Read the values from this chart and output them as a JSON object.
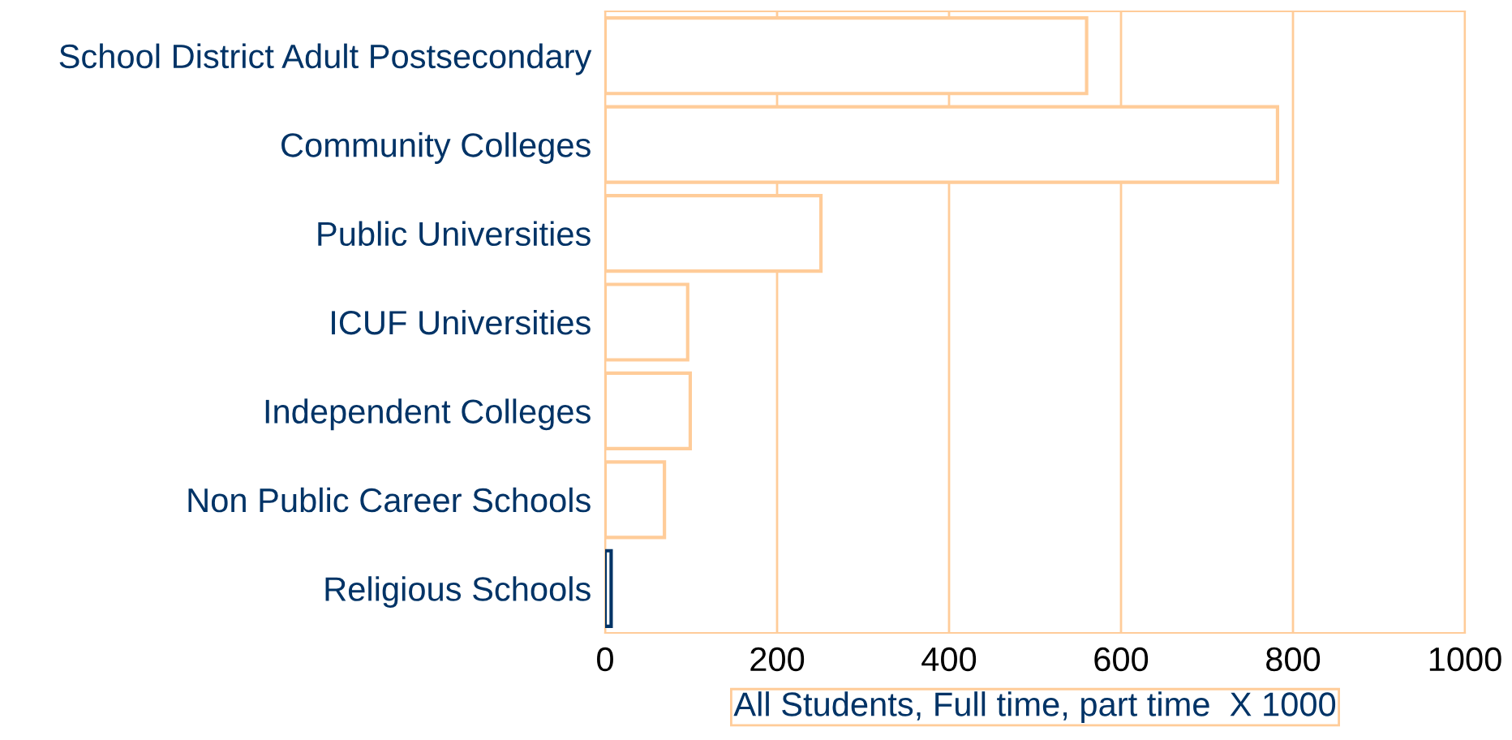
{
  "chart_data": {
    "type": "bar",
    "orientation": "horizontal",
    "xlabel": "All Students, Full time, part time  X 1000",
    "categories": [
      "School District Adult Postsecondary",
      "Community Colleges",
      "Public Universities",
      "ICUF Universities",
      "Independent Colleges",
      "Non Public Career Schools",
      "Religious Schools"
    ],
    "values": [
      560,
      782,
      251,
      96,
      99,
      69,
      7
    ],
    "colors": [
      "#ffcc99",
      "#ffcc99",
      "#ffcc99",
      "#ffcc99",
      "#ffcc99",
      "#ffcc99",
      "#003366"
    ],
    "xlim": [
      0,
      1000
    ],
    "xticks": [
      0,
      200,
      400,
      600,
      800,
      1000
    ],
    "grid": "x",
    "legend": false
  }
}
